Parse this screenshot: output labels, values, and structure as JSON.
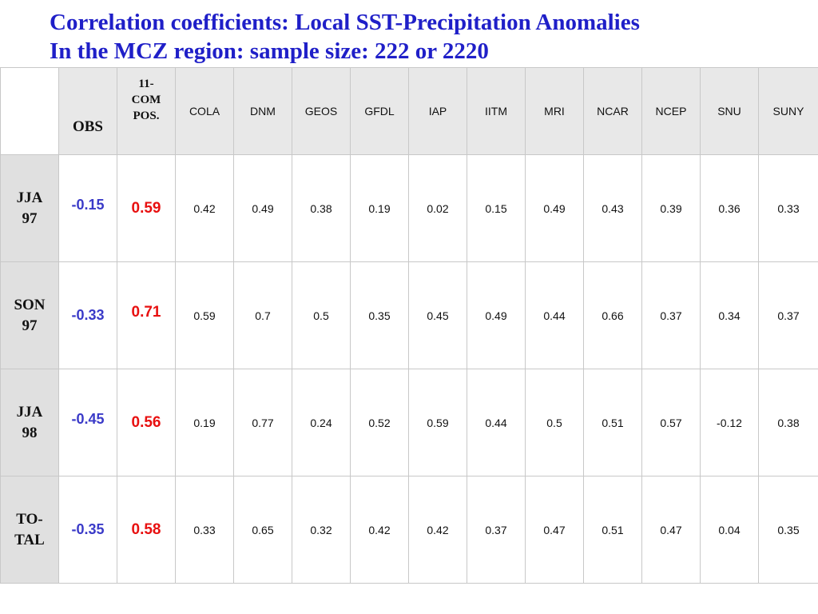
{
  "title": {
    "line1": "Correlation coefficients: Local SST-Precipitation Anomalies",
    "line2": "In the MCZ region: sample size: 222 or 2220"
  },
  "colors": {
    "title": "#1f1fc8",
    "obs_values": "#3a3ac8",
    "composite_values": "#e81010",
    "header_bg": "#e8e8e8",
    "rowhead_bg": "#e0e0e0"
  },
  "table": {
    "headers": {
      "obs": "OBS",
      "composite_line1": "11-",
      "composite_line2": "COM",
      "composite_line3": "POS.",
      "models": [
        "COLA",
        "DNM",
        "GEOS",
        "GFDL",
        "IAP",
        "IITM",
        "MRI",
        "NCAR",
        "NCEP",
        "SNU",
        "SUNY"
      ]
    },
    "rows": [
      {
        "label_line1": "JJA",
        "label_line2": "97",
        "obs": "-0.15",
        "composite": "0.59",
        "models": [
          "0.42",
          "0.49",
          "0.38",
          "0.19",
          "0.02",
          "0.15",
          "0.49",
          "0.43",
          "0.39",
          "0.36",
          "0.33"
        ]
      },
      {
        "label_line1": "SON",
        "label_line2": "97",
        "obs": "-0.33",
        "composite": "0.71",
        "models": [
          "0.59",
          "0.7",
          "0.5",
          "0.35",
          "0.45",
          "0.49",
          "0.44",
          "0.66",
          "0.37",
          "0.34",
          "0.37"
        ]
      },
      {
        "label_line1": "JJA",
        "label_line2": "98",
        "obs": "-0.45",
        "composite": "0.56",
        "models": [
          "0.19",
          "0.77",
          "0.24",
          "0.52",
          "0.59",
          "0.44",
          "0.5",
          "0.51",
          "0.57",
          "-0.12",
          "0.38"
        ]
      },
      {
        "label_line1": "TO-",
        "label_line2": "TAL",
        "obs": "-0.35",
        "composite": "0.58",
        "models": [
          "0.33",
          "0.65",
          "0.32",
          "0.42",
          "0.42",
          "0.37",
          "0.47",
          "0.51",
          "0.47",
          "0.04",
          "0.35"
        ]
      }
    ]
  }
}
